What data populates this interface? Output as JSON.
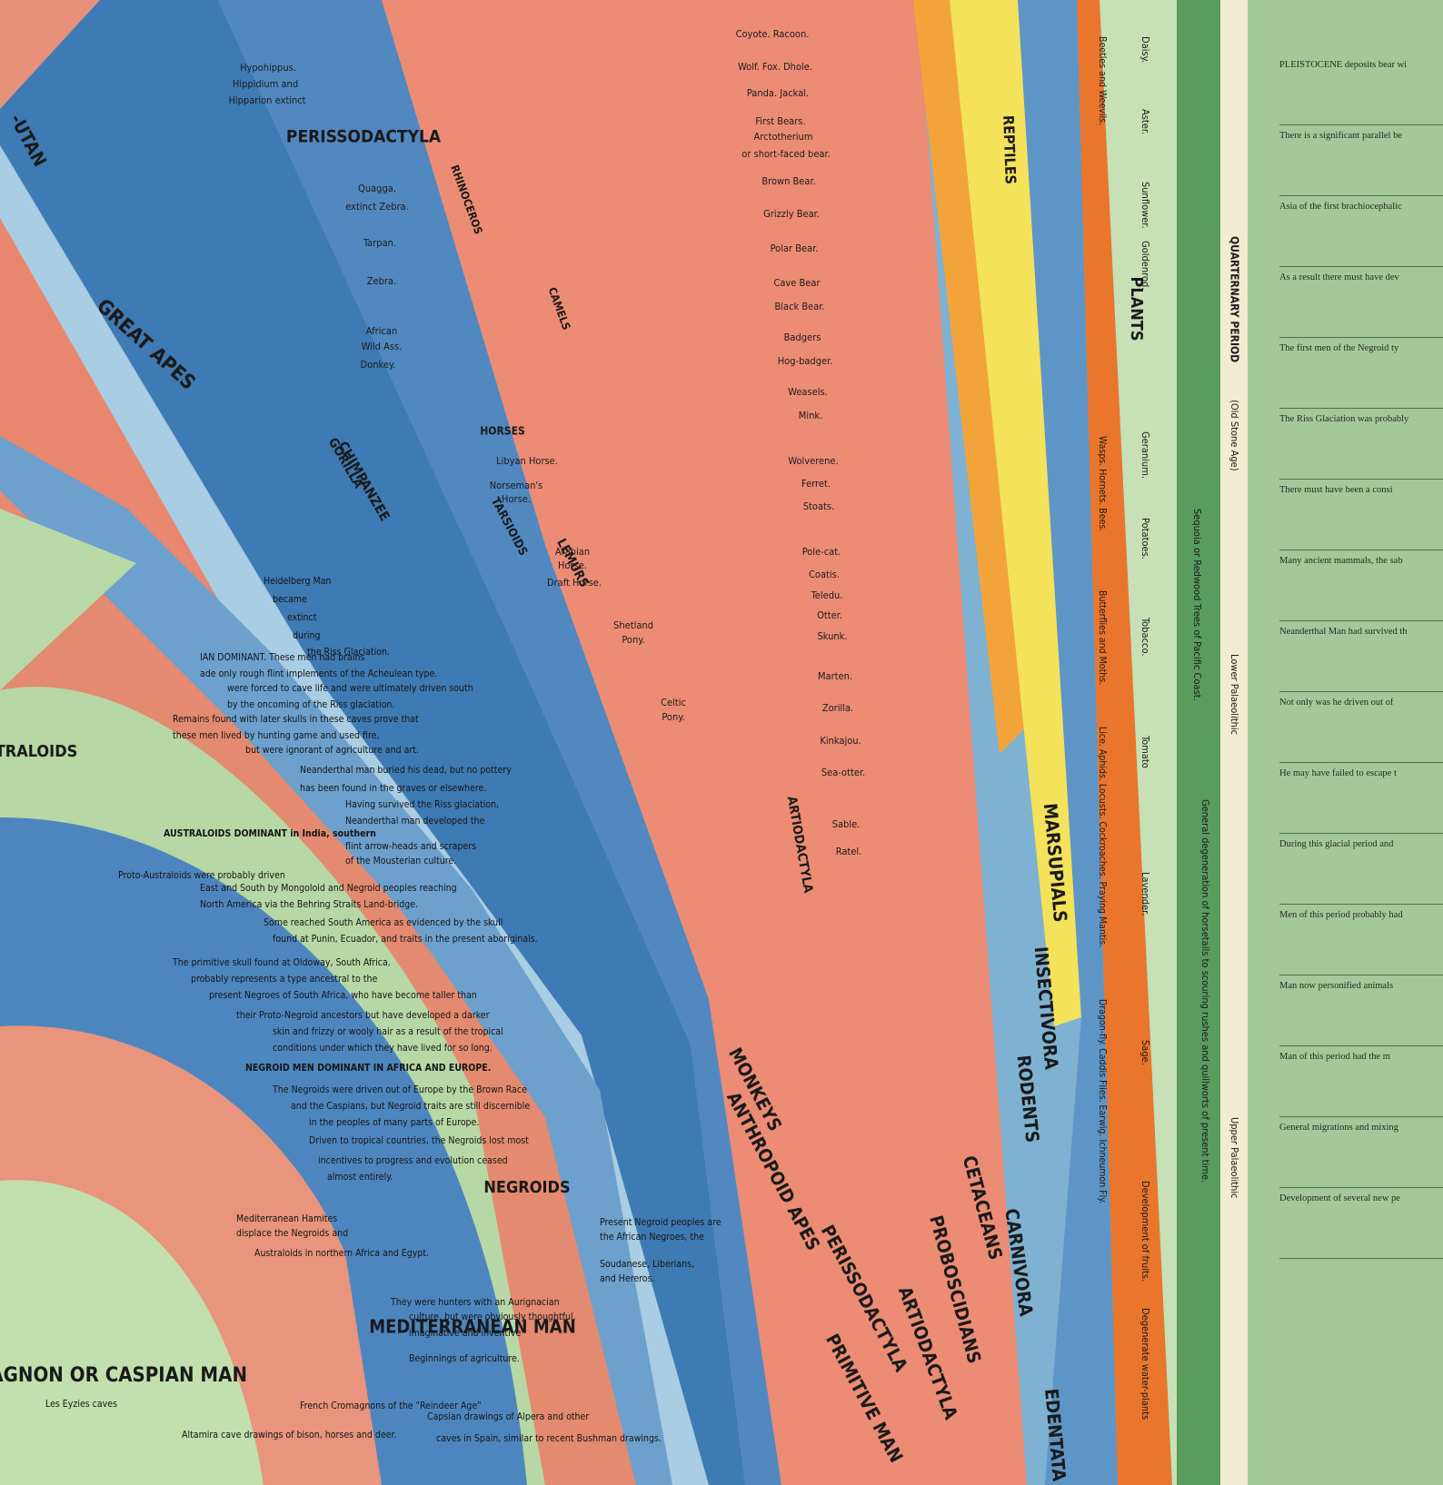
{
  "groups": [
    "GREAT APES",
    "LEMURS",
    "TARSIOIDS",
    "MONKEYS",
    "ANTHROPOID APES",
    "PERISSODACTYLA",
    "PRIMITIVE MAN",
    "ARTIODACTYLA",
    "PROBOSCIDIANS",
    "CETACEANS",
    "CARNIVORA",
    "RODENTS",
    "INSECTIVORA",
    "MARSUPIALS",
    "EDENTATA",
    "REPTILES",
    "PLANTS",
    "NEGROIDS",
    "MEDITERRANEAN MAN",
    "RO-MAGNON OR CASPIAN MAN",
    "TRALOIDS",
    "CHIMPANZEE",
    "GORILLA",
    "HORSES",
    "CAMELS",
    "RHINOCEROS",
    "PERISSODACTYLA",
    "ARTIODACTYLA",
    "-UTAN"
  ],
  "carnivora_species": [
    "Coyote. Racoon.",
    "Wolf. Fox. Dhole.",
    "Panda. Jackal.",
    "First Bears.",
    "Arctotherium",
    "or short-faced bear.",
    "Brown Bear.",
    "Grizzly Bear.",
    "Polar Bear.",
    "Cave Bear",
    "Black Bear.",
    "Badgers",
    "Hog-badger.",
    "Weasels.",
    "Mink.",
    "Wolverene.",
    "Ferret.",
    "Stoats.",
    "Pole-cat.",
    "Coatis.",
    "Teledu.",
    "Otter.",
    "Skunk.",
    "Marten.",
    "Zorilla.",
    "Kinkajou.",
    "Sea-otter.",
    "Sable.",
    "Ratel."
  ],
  "horse_species": [
    "Hypohippus.",
    "Hippidium and",
    "Hipparion extinct",
    "Quagga,",
    "extinct Zebra.",
    "Tarpan.",
    "Zebra.",
    "African",
    "Wild Ass.",
    "Donkey.",
    "Libyan Horse.",
    "Norseman's",
    "Horse.",
    "Arabian",
    "Horse.",
    "Draft Horse.",
    "Shetland",
    "Pony.",
    "Celtic",
    "Pony."
  ],
  "plants": [
    "Daisy.",
    "Aster.",
    "Sunflower.",
    "Goldenrod.",
    "Geranium.",
    "Potatoes.",
    "Tobacco.",
    "Tomato",
    "Lavender.",
    "Sage.",
    "Development of fruits.",
    "Degenerate water-plants"
  ],
  "insects": [
    "Beetles and Weevils.",
    "Wasps. Hornets. Bees.",
    "Butterflies and Moths.",
    "Lice. Aphids. Locusts. Cockroaches. Praying Mantis.",
    "Dragon-fly. Caddis Flies. Earwig. Ichneumon Fly."
  ],
  "periods": [
    "QUARTERNARY PERIOD",
    "(Old Stone Age)",
    "Lower Palaeolithic",
    "Upper Palaeolithic",
    "Sequoia or Redwood Trees of Pacific Coast.",
    "General degeneration of horsetails to scouring rushes and quillworts of present time."
  ],
  "left_notes": [
    "Heidelberg Man",
    "became",
    "extinct",
    "during",
    "the Riss Glaciation.",
    "IAN DOMINANT. These men had brains",
    "ade only rough flint implements of the Acheulean type.",
    "were forced to cave life and were ultimately driven south",
    "by the oncoming of the Riss glaciation.",
    "Remains found with later skulls in these caves prove that",
    "these men lived by hunting game and used fire,",
    "but were ignorant of agriculture and art.",
    "Neanderthal man buried his dead, but no pottery",
    "has been found in the graves or elsewhere.",
    "Having survived the Riss glaciation,",
    "Neanderthal man developed the",
    "AUSTRALOIDS DOMINANT in India, southern",
    "flint arrow-heads and scrapers",
    "of the Mousterian culture.",
    "Proto-Australoids were probably driven",
    "East and South by Mongoloid and Negroid peoples reaching",
    "North America via the Behring Straits Land-bridge.",
    "Some reached South America as evidenced by the skull",
    "found at Punin, Ecuador, and traits in the present aboriginals.",
    "The primitive skull found at Oldoway, South Africa,",
    "probably represents a type ancestral to the",
    "present Negroes of South Africa, who have become taller than",
    "their Proto-Negroid ancestors but have developed a darker",
    "skin and frizzy or wooly hair as a result of the tropical",
    "conditions under which they have lived for so long.",
    "NEGROID MEN DOMINANT IN AFRICA AND EUROPE.",
    "The Negroids were driven out of Europe by the Brown Race",
    "and the Caspians, but Negroid traits are still discernible",
    "in the peoples of many parts of Europe.",
    "Driven to tropical countries, the Negroids lost most",
    "incentives to progress and evolution ceased",
    "almost entirely.",
    "Present Negroid peoples are",
    "the African Negroes, the",
    "Soudanese, Liberians,",
    "and Hereros.",
    "They were hunters with an Aurignacian",
    "culture, but were obviously thoughtful,",
    "imaginative and inventive",
    "Beginnings of agriculture.",
    "Capsian drawings of Alpera and other",
    "caves in Spain, similar to recent Bushman drawings.",
    "Les Eyzies caves",
    "French Cromagnons of the \"Reindeer Age\"",
    "Altamira cave drawings of bison, horses and deer.",
    "Mediterranean Hamites",
    "displace the Negroids and",
    "Australoids in northern Africa and Egypt."
  ],
  "right_panel": [
    "PLEISTOCENE deposits bear wi",
    "There is a significant parallel be",
    "Asia of the first brachiocephalic",
    "As a result there must have dev",
    "The first men of the Negroid ty",
    "The Riss Glaciation was probably",
    "There must have been a consi",
    "Many ancient mammals, the sab",
    "Neanderthal Man had survived th",
    "Not only was he driven out of",
    "He may have failed to escape t",
    "During this glacial period and",
    "Men of this period probably had",
    "Man now personified animals",
    "Man of this period had the m",
    "General migrations and mixing",
    "Development of several new pe"
  ]
}
